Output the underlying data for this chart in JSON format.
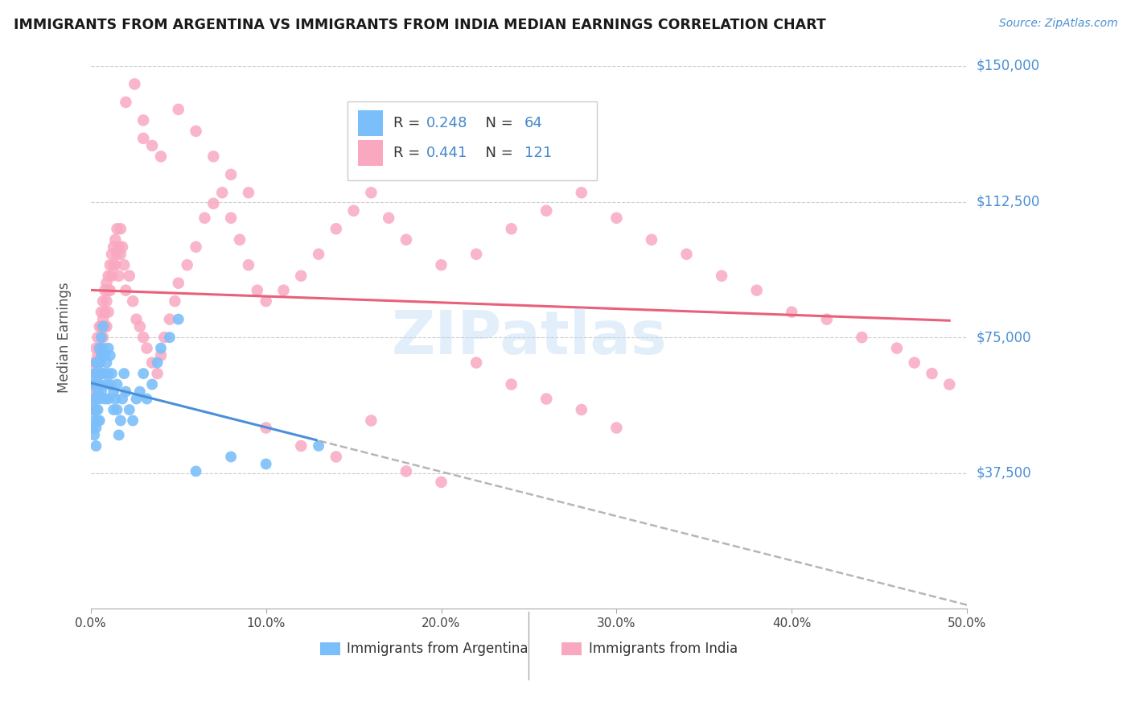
{
  "title": "IMMIGRANTS FROM ARGENTINA VS IMMIGRANTS FROM INDIA MEDIAN EARNINGS CORRELATION CHART",
  "source": "Source: ZipAtlas.com",
  "ylabel": "Median Earnings",
  "yticks": [
    0,
    37500,
    75000,
    112500,
    150000
  ],
  "ytick_labels": [
    "",
    "$37,500",
    "$75,000",
    "$112,500",
    "$150,000"
  ],
  "xmin": 0.0,
  "xmax": 0.5,
  "ymin": 0,
  "ymax": 150000,
  "argentina_R": 0.248,
  "argentina_N": 64,
  "india_R": 0.441,
  "india_N": 121,
  "argentina_color": "#7bbffa",
  "india_color": "#f9a8c0",
  "argentina_line_color": "#4a90d9",
  "india_line_color": "#e8607a",
  "dash_line_color": "#aaaaaa",
  "watermark": "ZIPatlas",
  "argentina_x": [
    0.001,
    0.001,
    0.001,
    0.002,
    0.002,
    0.002,
    0.002,
    0.003,
    0.003,
    0.003,
    0.003,
    0.003,
    0.004,
    0.004,
    0.004,
    0.004,
    0.005,
    0.005,
    0.005,
    0.005,
    0.005,
    0.006,
    0.006,
    0.006,
    0.006,
    0.007,
    0.007,
    0.007,
    0.008,
    0.008,
    0.008,
    0.009,
    0.009,
    0.01,
    0.01,
    0.01,
    0.011,
    0.011,
    0.012,
    0.013,
    0.013,
    0.014,
    0.015,
    0.015,
    0.016,
    0.017,
    0.018,
    0.019,
    0.02,
    0.022,
    0.024,
    0.026,
    0.028,
    0.03,
    0.032,
    0.035,
    0.038,
    0.04,
    0.045,
    0.05,
    0.06,
    0.08,
    0.1,
    0.13
  ],
  "argentina_y": [
    55000,
    62000,
    50000,
    58000,
    52000,
    48000,
    65000,
    62000,
    55000,
    50000,
    68000,
    45000,
    65000,
    60000,
    55000,
    52000,
    72000,
    68000,
    62000,
    58000,
    52000,
    75000,
    70000,
    65000,
    60000,
    78000,
    72000,
    65000,
    70000,
    65000,
    58000,
    68000,
    62000,
    72000,
    65000,
    58000,
    70000,
    62000,
    65000,
    60000,
    55000,
    58000,
    62000,
    55000,
    48000,
    52000,
    58000,
    65000,
    60000,
    55000,
    52000,
    58000,
    60000,
    65000,
    58000,
    62000,
    68000,
    72000,
    75000,
    80000,
    38000,
    42000,
    40000,
    45000
  ],
  "india_x": [
    0.001,
    0.001,
    0.001,
    0.002,
    0.002,
    0.002,
    0.002,
    0.003,
    0.003,
    0.003,
    0.003,
    0.004,
    0.004,
    0.004,
    0.004,
    0.005,
    0.005,
    0.005,
    0.005,
    0.006,
    0.006,
    0.006,
    0.007,
    0.007,
    0.007,
    0.008,
    0.008,
    0.008,
    0.009,
    0.009,
    0.009,
    0.01,
    0.01,
    0.01,
    0.011,
    0.011,
    0.012,
    0.012,
    0.013,
    0.013,
    0.014,
    0.014,
    0.015,
    0.015,
    0.016,
    0.016,
    0.017,
    0.017,
    0.018,
    0.019,
    0.02,
    0.022,
    0.024,
    0.026,
    0.028,
    0.03,
    0.03,
    0.032,
    0.035,
    0.038,
    0.04,
    0.042,
    0.045,
    0.048,
    0.05,
    0.055,
    0.06,
    0.065,
    0.07,
    0.075,
    0.08,
    0.085,
    0.09,
    0.095,
    0.1,
    0.11,
    0.12,
    0.13,
    0.14,
    0.15,
    0.16,
    0.17,
    0.18,
    0.2,
    0.22,
    0.24,
    0.26,
    0.28,
    0.3,
    0.32,
    0.34,
    0.36,
    0.38,
    0.4,
    0.42,
    0.44,
    0.46,
    0.47,
    0.48,
    0.49,
    0.02,
    0.025,
    0.03,
    0.035,
    0.04,
    0.05,
    0.06,
    0.07,
    0.08,
    0.09,
    0.1,
    0.12,
    0.14,
    0.16,
    0.18,
    0.2,
    0.22,
    0.24,
    0.26,
    0.28,
    0.3
  ],
  "india_y": [
    58000,
    62000,
    55000,
    65000,
    60000,
    55000,
    68000,
    72000,
    68000,
    62000,
    58000,
    75000,
    70000,
    65000,
    60000,
    78000,
    72000,
    68000,
    62000,
    82000,
    78000,
    70000,
    85000,
    80000,
    75000,
    88000,
    82000,
    78000,
    90000,
    85000,
    78000,
    92000,
    88000,
    82000,
    95000,
    88000,
    98000,
    92000,
    100000,
    95000,
    102000,
    95000,
    105000,
    98000,
    100000,
    92000,
    105000,
    98000,
    100000,
    95000,
    88000,
    92000,
    85000,
    80000,
    78000,
    75000,
    130000,
    72000,
    68000,
    65000,
    70000,
    75000,
    80000,
    85000,
    90000,
    95000,
    100000,
    108000,
    112000,
    115000,
    108000,
    102000,
    95000,
    88000,
    85000,
    88000,
    92000,
    98000,
    105000,
    110000,
    115000,
    108000,
    102000,
    95000,
    98000,
    105000,
    110000,
    115000,
    108000,
    102000,
    98000,
    92000,
    88000,
    82000,
    80000,
    75000,
    72000,
    68000,
    65000,
    62000,
    140000,
    145000,
    135000,
    128000,
    125000,
    138000,
    132000,
    125000,
    120000,
    115000,
    50000,
    45000,
    42000,
    52000,
    38000,
    35000,
    68000,
    62000,
    58000,
    55000,
    50000
  ]
}
